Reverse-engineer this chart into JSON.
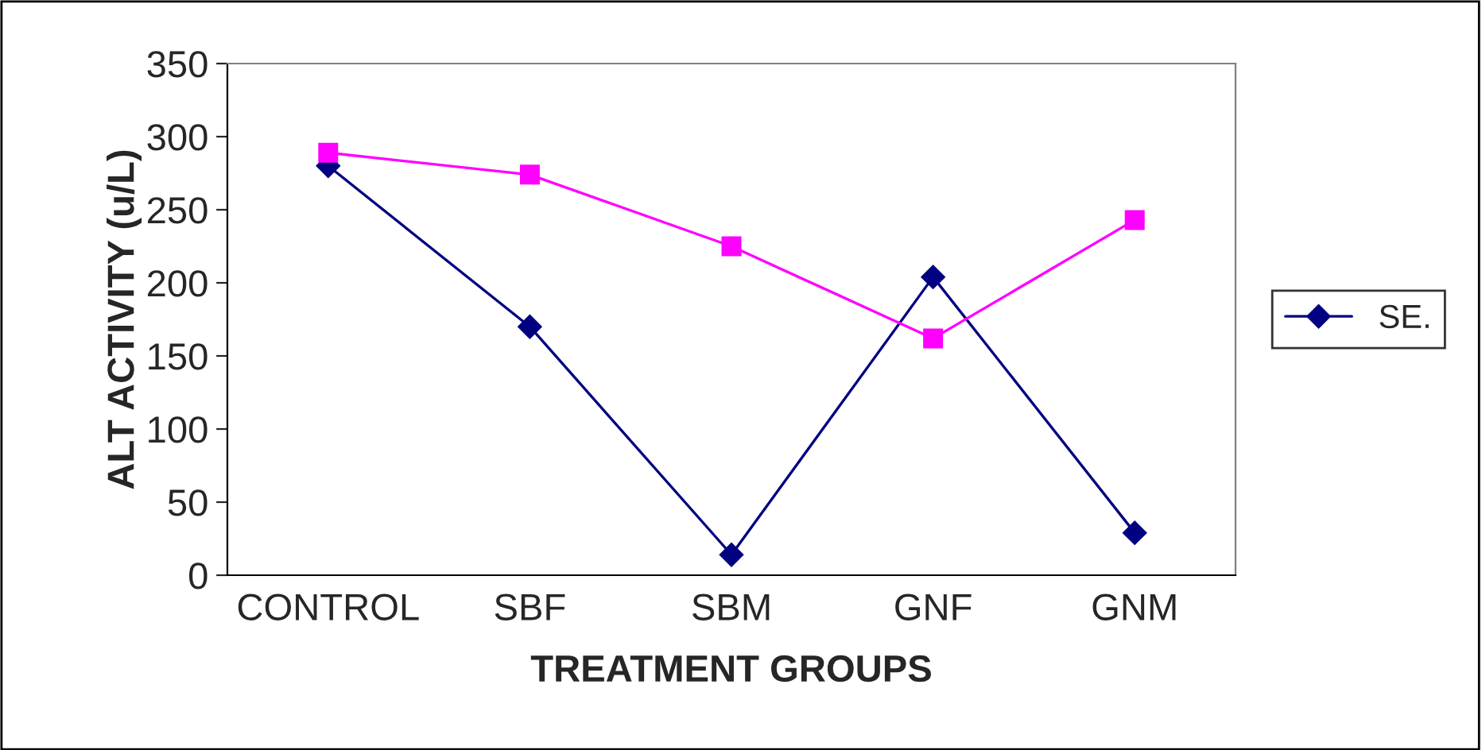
{
  "chart_data": {
    "type": "line",
    "xlabel": "TREATMENT GROUPS",
    "ylabel": "ALT ACTIVITY (u/L)",
    "categories": [
      "CONTROL",
      "SBF",
      "SBM",
      "GNF",
      "GNM"
    ],
    "series": [
      {
        "name": "SE.",
        "color": "#000080",
        "marker": "diamond",
        "values": [
          280,
          170,
          14,
          204,
          29
        ]
      },
      {
        "color": "#ff00ff",
        "marker": "square",
        "values": [
          289,
          274,
          225,
          162,
          243
        ]
      }
    ],
    "ylim": [
      0,
      350
    ],
    "yticks": [
      0,
      50,
      100,
      150,
      200,
      250,
      300,
      350
    ],
    "grid": false,
    "legend": "right"
  }
}
